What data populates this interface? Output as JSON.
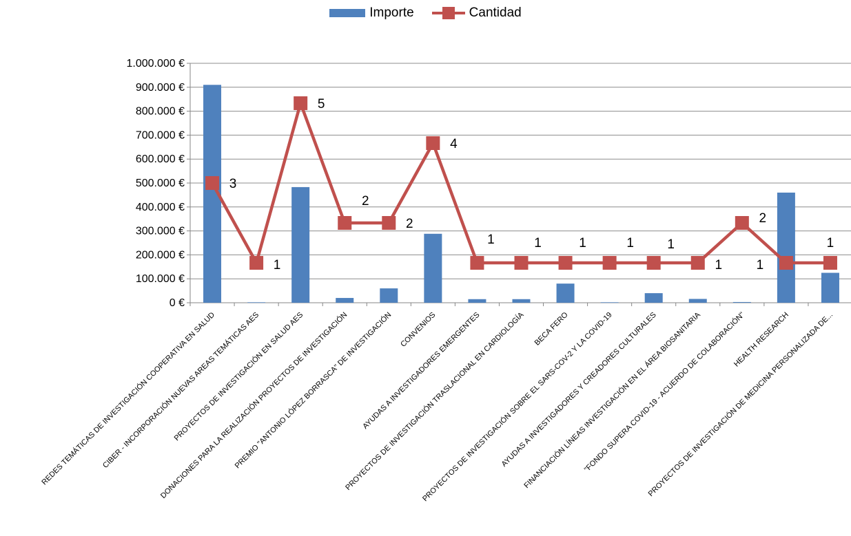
{
  "chart_data": {
    "type": "bar",
    "categories": [
      "REDES TEMÁTICAS DE INVESTIGACIÓN COOPERATIVA EN SALUD",
      "CIBER - INCORPORACIÓN NUEVAS AREAS TEMÁTICAS AES",
      "PROYECTOS DE INVESTIGACIÓN EN SALUD AES",
      "DONACIONES PARA LA REALIZACIÓN PROYECTOS DE INVESTIGACIÓN",
      "PREMIO \"ANTONIO LÓPEZ BORRASCA\" DE INVESTIGACIÓN",
      "CONVENIOS",
      "AYUDAS A INVESTIGADORES EMERGENTES",
      "PROYECTOS DE INVESTIGACIÓN TRASLACIONAL EN CARDIOLOGÍA",
      "BECA FERO",
      "PROYECTOS DE INVESTIGACIÓN SOBRE EL SARS-COV-2 Y LA COVID-19",
      "AYUDAS A INVESTIGADORES Y CREADORES CULTURALES",
      "FINANCIACIÓN LÍNEAS INVESTIGACIÓN EN EL ÁREA BIOSANITARIA",
      "\"FONDO SUPERA COVID-19 - ACUERDO DE COLABORACIÓN\"",
      "HEALTH RESEARCH",
      "PROYECTOS DE INVESTIGACIÓN DE MEDICINA PERSONALIZADA DE..."
    ],
    "series": [
      {
        "name": "Importe",
        "type": "bar",
        "color": "#4F81BD",
        "values": [
          910000,
          2000,
          483000,
          20000,
          60000,
          288000,
          15000,
          15000,
          80000,
          2000,
          40000,
          16000,
          3000,
          460000,
          125000
        ]
      },
      {
        "name": "Cantidad",
        "type": "line",
        "color": "#C0504D",
        "values": [
          3,
          1,
          5,
          2,
          2,
          4,
          1,
          1,
          1,
          1,
          1,
          1,
          2,
          1,
          1
        ],
        "data_labels": [
          "3",
          "1",
          "5",
          "2",
          "2",
          "4",
          "1",
          "1",
          "1",
          "1",
          "1",
          "1",
          "2",
          "1",
          "1"
        ],
        "ylim": [
          0,
          6
        ]
      }
    ],
    "ylim": [
      0,
      1000000
    ],
    "yticks": [
      "0 €",
      "100.000 €",
      "200.000 €",
      "300.000 €",
      "400.000 €",
      "500.000 €",
      "600.000 €",
      "700.000 €",
      "800.000 €",
      "900.000 €",
      "1.000.000 €"
    ],
    "grid": true,
    "legend_position": "top-center",
    "title": "",
    "xlabel": "",
    "ylabel": ""
  },
  "legend": {
    "bar_label": "Importe",
    "line_label": "Cantidad"
  }
}
